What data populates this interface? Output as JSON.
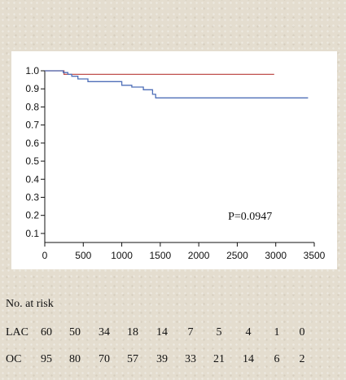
{
  "chart_data": {
    "type": "line",
    "xlim": [
      0,
      3500
    ],
    "ylim": [
      0.05,
      1.0
    ],
    "x_ticks": [
      "0",
      "500",
      "1000",
      "1500",
      "2000",
      "2500",
      "3000",
      "3500"
    ],
    "y_ticks": [
      "0.1",
      "0.2",
      "0.3",
      "0.4",
      "0.5",
      "0.6",
      "0.7",
      "0.8",
      "0.9",
      "1.0"
    ],
    "grid": false,
    "annotation": "P=0.0947",
    "series": [
      {
        "color": "#c0504d",
        "points": [
          [
            0,
            1.0
          ],
          [
            250,
            1.0
          ],
          [
            250,
            0.98
          ],
          [
            2980,
            0.98
          ]
        ]
      },
      {
        "color": "#4f6fb8",
        "points": [
          [
            0,
            1.0
          ],
          [
            240,
            1.0
          ],
          [
            240,
            0.99
          ],
          [
            300,
            0.99
          ],
          [
            300,
            0.98
          ],
          [
            350,
            0.98
          ],
          [
            350,
            0.97
          ],
          [
            430,
            0.97
          ],
          [
            430,
            0.955
          ],
          [
            560,
            0.955
          ],
          [
            560,
            0.94
          ],
          [
            1000,
            0.94
          ],
          [
            1000,
            0.92
          ],
          [
            1100,
            0.92
          ],
          [
            1130,
            0.92
          ],
          [
            1130,
            0.91
          ],
          [
            1280,
            0.91
          ],
          [
            1280,
            0.895
          ],
          [
            1400,
            0.895
          ],
          [
            1400,
            0.87
          ],
          [
            1440,
            0.87
          ],
          [
            1440,
            0.85
          ],
          [
            3420,
            0.85
          ]
        ]
      }
    ]
  },
  "risk_table": {
    "title": "No. at risk",
    "groups": [
      {
        "label": "LAC",
        "values": [
          "60",
          "50",
          "34",
          "18",
          "14",
          "7",
          "5",
          "4",
          "1",
          "0"
        ]
      },
      {
        "label": "OC",
        "values": [
          "95",
          "80",
          "70",
          "57",
          "39",
          "33",
          "21",
          "14",
          "6",
          "2"
        ]
      }
    ]
  }
}
